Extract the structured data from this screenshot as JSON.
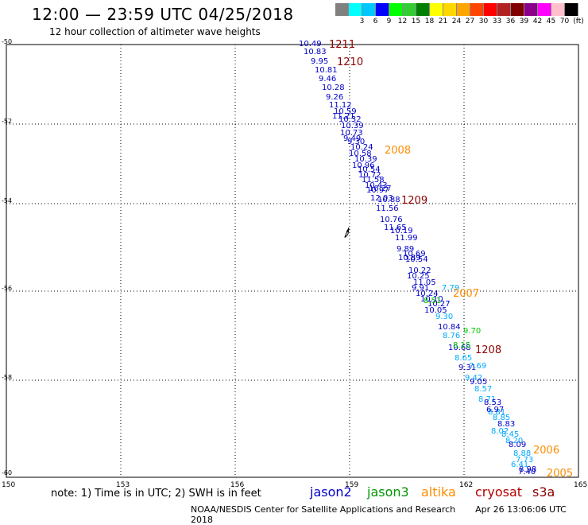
{
  "header": {
    "title": "12:00 — 23:59 UTC 04/25/2018",
    "subtitle": "12 hour collection of altimeter wave heights"
  },
  "colorbar": {
    "unit": "(ft)",
    "bins": [
      {
        "color": "#808080",
        "label": ""
      },
      {
        "color": "#00ffff",
        "label": "3"
      },
      {
        "color": "#00c8ff",
        "label": "6"
      },
      {
        "color": "#0000ff",
        "label": "9"
      },
      {
        "color": "#00ff00",
        "label": "12"
      },
      {
        "color": "#32cd32",
        "label": "15"
      },
      {
        "color": "#008000",
        "label": "18"
      },
      {
        "color": "#ffff00",
        "label": "21"
      },
      {
        "color": "#ffd700",
        "label": "24"
      },
      {
        "color": "#ffa500",
        "label": "27"
      },
      {
        "color": "#ff4500",
        "label": "30"
      },
      {
        "color": "#ff0000",
        "label": "33"
      },
      {
        "color": "#b22222",
        "label": "36"
      },
      {
        "color": "#800000",
        "label": "39"
      },
      {
        "color": "#8b008b",
        "label": "42"
      },
      {
        "color": "#ff00ff",
        "label": "45"
      },
      {
        "color": "#ffc0cb",
        "label": "70"
      },
      {
        "color": "#000000",
        "label": ""
      }
    ]
  },
  "map": {
    "lon_ticks": [
      "150",
      "153",
      "156",
      "159",
      "162",
      "165"
    ],
    "lat_ticks": [
      "-50",
      "-52",
      "-54",
      "-56",
      "-58",
      "-60"
    ],
    "time_labels": [
      {
        "text": "1211",
        "color": "#8b0000"
      },
      {
        "text": "1210",
        "color": "#8b0000"
      },
      {
        "text": "2008",
        "color": "#ff8c00"
      },
      {
        "text": "1209",
        "color": "#8b0000"
      },
      {
        "text": "2007",
        "color": "#ff8c00"
      },
      {
        "text": "1208",
        "color": "#8b0000"
      },
      {
        "text": "2006",
        "color": "#ff8c00"
      },
      {
        "text": "2005",
        "color": "#ff8c00"
      }
    ],
    "wave_heights": [
      "10.49",
      "10.83",
      "9.95",
      "10.81",
      "9.46",
      "10.28",
      "9.26",
      "11.12",
      "10.59",
      "11.21",
      "10.32",
      "10.39",
      "10.73",
      "9.49",
      "9.30",
      "10.24",
      "10.58",
      "10.39",
      "10.96",
      "10.54",
      "10.72",
      "11.58",
      "10.43",
      "10.97",
      "10.27",
      "12.03",
      "10.88",
      "11.56",
      "10.76",
      "11.65",
      "10.19",
      "11.99",
      "9.89",
      "10.69",
      "10.89",
      "10.54",
      "10.22",
      "10.25",
      "11.05",
      "9.91",
      "10.24",
      "10.10",
      "10.27",
      "10.05",
      "9.30",
      "10.84",
      "8.76",
      "10.68",
      "8.65",
      "9.31",
      "9.42",
      "9.05",
      "8.57",
      "8.71",
      "8.53",
      "8.81",
      "8.85",
      "8.83",
      "8.45",
      "8.20",
      "8.09",
      "8.88",
      "7.73",
      "8.98",
      "9.70",
      "8.15",
      "8.51",
      "7.79",
      "7.69",
      "6.97",
      "8.02",
      "6.41",
      "7.40"
    ]
  },
  "footer": {
    "note": "note:  1) Time is in UTC;  2) SWH is in feet",
    "satellites": [
      {
        "name": "jason2",
        "color": "#0000c8"
      },
      {
        "name": "jason3",
        "color": "#009600"
      },
      {
        "name": "altika",
        "color": "#ff8c00"
      },
      {
        "name": "cryosat",
        "color": "#b40000"
      },
      {
        "name": "s3a",
        "color": "#8b0000"
      }
    ],
    "credit": "NOAA/NESDIS Center for Satellite Applications and Research",
    "timestamp": "Apr 26 13:06:06 UTC 2018"
  }
}
